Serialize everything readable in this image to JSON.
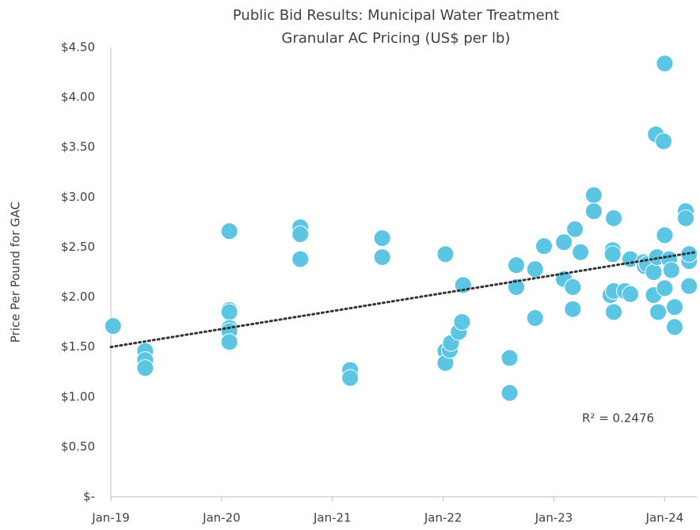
{
  "chart_data": {
    "type": "scatter",
    "title": [
      "Public Bid Results: Municipal Water Treatment",
      "Granular AC Pricing (US$ per lb)"
    ],
    "y_label": "Price Per Pound for GAC",
    "annotation": "R² = 0.2476",
    "xlim": [
      2019,
      2024.29
    ],
    "xticks": [
      {
        "value": 2019,
        "label": "Jan-19"
      },
      {
        "value": 2020,
        "label": "Jan-20"
      },
      {
        "value": 2021,
        "label": "Jan-21"
      },
      {
        "value": 2022,
        "label": "Jan-22"
      },
      {
        "value": 2023,
        "label": "Jan-23"
      },
      {
        "value": 2024,
        "label": "Jan-24"
      }
    ],
    "ylim": [
      0,
      4.5
    ],
    "yticks": [
      {
        "value": 0,
        "label": "$-"
      },
      {
        "value": 0.5,
        "label": "$0.50"
      },
      {
        "value": 1,
        "label": "$1.00"
      },
      {
        "value": 1.5,
        "label": "$1.50"
      },
      {
        "value": 2,
        "label": "$2.00"
      },
      {
        "value": 2.5,
        "label": "$2.50"
      },
      {
        "value": 3,
        "label": "$3.00"
      },
      {
        "value": 3.5,
        "label": "$3.50"
      },
      {
        "value": 4,
        "label": "$4.00"
      },
      {
        "value": 4.5,
        "label": "$4.50"
      }
    ],
    "color": "#5bc5e3",
    "x": [
      2019.02,
      2019.31,
      2019.31,
      2019.31,
      2020.07,
      2020.07,
      2020.07,
      2020.07,
      2020.07,
      2020.07,
      2020.71,
      2020.71,
      2020.71,
      2021.16,
      2021.16,
      2021.45,
      2021.45,
      2022.02,
      2022.02,
      2022.02,
      2022.06,
      2022.07,
      2022.14,
      2022.17,
      2022.18,
      2022.6,
      2022.6,
      2022.66,
      2022.66,
      2022.83,
      2022.83,
      2022.91,
      2023.09,
      2023.09,
      2023.17,
      2023.17,
      2023.19,
      2023.24,
      2023.36,
      2023.36,
      2023.51,
      2023.54,
      2023.54,
      2023.53,
      2023.53,
      2023.54,
      2023.64,
      2023.69,
      2023.69,
      2023.81,
      2023.82,
      2023.84,
      2023.9,
      2023.9,
      2023.92,
      2023.93,
      2023.94,
      2023.99,
      2024.0,
      2024.0,
      2024.0,
      2024.04,
      2024.06,
      2024.09,
      2024.09,
      2024.19,
      2024.19,
      2024.22,
      2024.22,
      2024.22
    ],
    "values": [
      1.71,
      1.46,
      1.37,
      1.29,
      2.66,
      1.87,
      1.85,
      1.69,
      1.66,
      1.55,
      2.7,
      2.63,
      2.38,
      1.27,
      1.19,
      2.59,
      2.4,
      2.43,
      1.46,
      1.34,
      1.47,
      1.54,
      1.65,
      1.75,
      2.12,
      1.39,
      1.04,
      2.32,
      2.1,
      2.28,
      1.79,
      2.51,
      2.55,
      2.18,
      2.1,
      1.88,
      2.68,
      2.45,
      3.02,
      2.86,
      2.02,
      2.06,
      1.85,
      2.47,
      2.43,
      2.79,
      2.06,
      2.03,
      2.38,
      2.35,
      2.31,
      2.33,
      2.25,
      2.02,
      3.63,
      2.4,
      1.85,
      3.56,
      2.62,
      4.34,
      2.09,
      2.38,
      2.27,
      1.9,
      1.7,
      2.86,
      2.79,
      2.36,
      2.43,
      2.11
    ],
    "trendline": {
      "x": [
        2019,
        2024.28
      ],
      "values": [
        1.5,
        2.45
      ],
      "color": "#333333"
    }
  }
}
